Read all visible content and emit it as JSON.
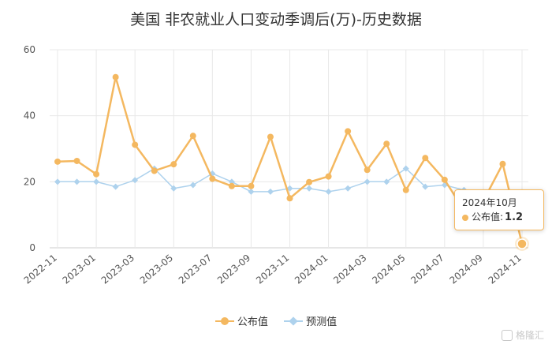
{
  "chart_data": {
    "type": "line",
    "title": "美国 非农就业人口变动季调后(万)-历史数据",
    "ylim": [
      0,
      60
    ],
    "y_ticks": [
      "0",
      "20",
      "40",
      "60"
    ],
    "x_ticks": [
      "2022-11",
      "2023-01",
      "2023-03",
      "2023-05",
      "2023-07",
      "2023-09",
      "2023-11",
      "2024-01",
      "2024-03",
      "2024-05",
      "2024-07",
      "2024-09",
      "2024-11"
    ],
    "series": [
      {
        "name": "公布值",
        "color": "#f4b860",
        "marker": "circle",
        "values": [
          26.1,
          26.3,
          22.3,
          51.7,
          31.2,
          23.3,
          25.3,
          33.9,
          20.9,
          18.7,
          18.7,
          33.6,
          15.0,
          19.9,
          21.6,
          35.3,
          23.6,
          31.5,
          17.5,
          27.2,
          20.6,
          11.4,
          14.2,
          25.4,
          1.2
        ]
      },
      {
        "name": "预测值",
        "color": "#aed2ed",
        "marker": "diamond",
        "values": [
          20.0,
          20.0,
          20.0,
          18.5,
          20.5,
          24.0,
          18.0,
          19.0,
          22.5,
          20.0,
          17.0,
          17.0,
          18.0,
          18.0,
          17.0,
          18.0,
          20.0,
          20.0,
          24.0,
          18.5,
          19.0,
          17.5,
          16.5,
          14.0,
          11.0
        ]
      }
    ],
    "highlight_index": 24,
    "grid": true,
    "legend_position": "bottom-center"
  },
  "tooltip": {
    "date": "2024年10月",
    "series_label": "公布值:",
    "value": "1.2"
  },
  "legend": {
    "items": [
      {
        "label": "公布值",
        "color": "#f4b860",
        "marker": "circle"
      },
      {
        "label": "预测值",
        "color": "#aed2ed",
        "marker": "diamond"
      }
    ]
  },
  "watermark": "格隆汇"
}
